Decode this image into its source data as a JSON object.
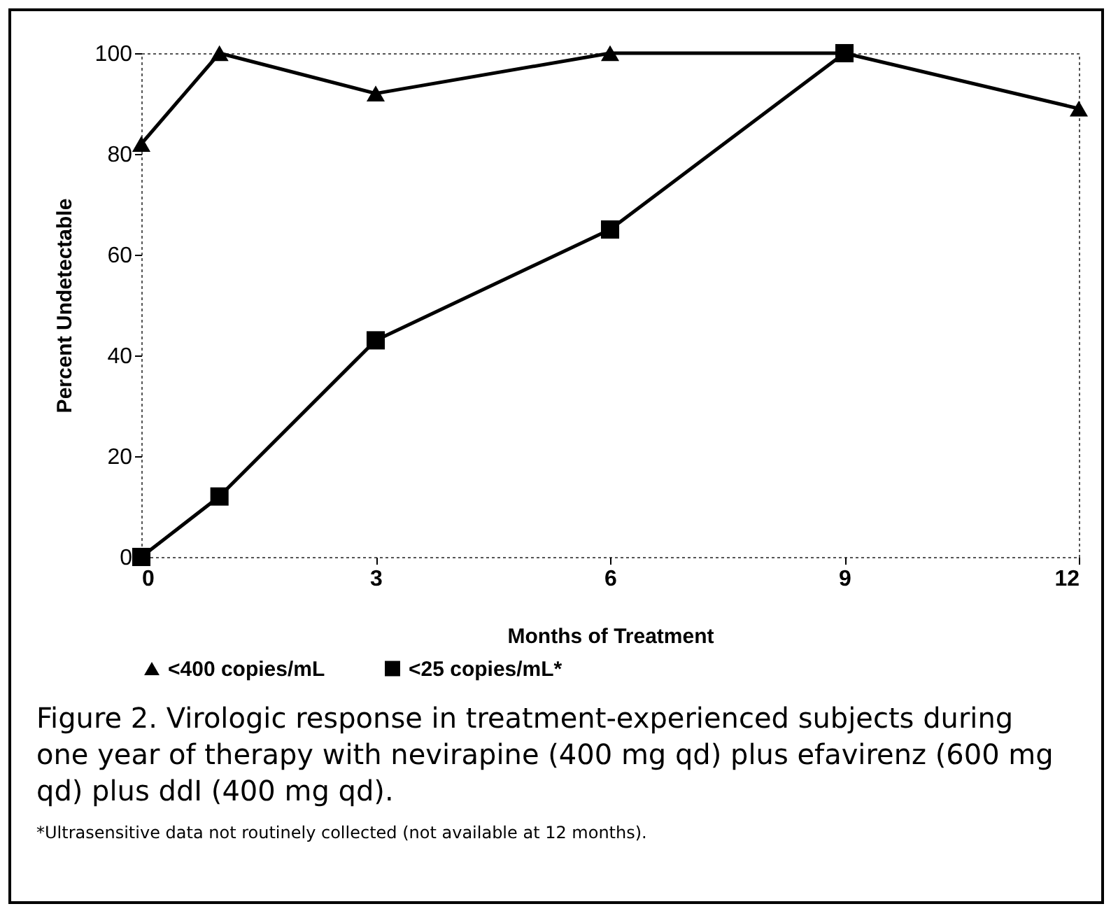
{
  "chart_data": {
    "type": "line",
    "xlabel": "Months of Treatment",
    "ylabel": "Percent Undetectable",
    "x": [
      0,
      1,
      3,
      6,
      9,
      12
    ],
    "series": [
      {
        "name": "<400 copies/mL",
        "color": "#000000",
        "marker": "triangle",
        "values": [
          82,
          100,
          92,
          100,
          100,
          89
        ]
      },
      {
        "name": "<25 copies/mL*",
        "color": "#000000",
        "marker": "square",
        "values": [
          0,
          12,
          43,
          65,
          100,
          null
        ]
      }
    ],
    "xlim": [
      0,
      12
    ],
    "xticks": [
      0,
      3,
      6,
      9,
      12
    ],
    "ylim": [
      0,
      100
    ],
    "yticks": [
      0,
      20,
      40,
      60,
      80,
      100
    ],
    "grid": false,
    "legend": "bottom",
    "line_style": "solid",
    "annotations": [
      "Figure 2. Virologic response in treatment-experienced subjects during one year of therapy with nevirapine (400 mg qd) plus efavirenz (600 mg qd) plus ddI (400 mg qd).",
      "*Ultrasensitive data not routinely collected (not available at 12 months)."
    ]
  }
}
